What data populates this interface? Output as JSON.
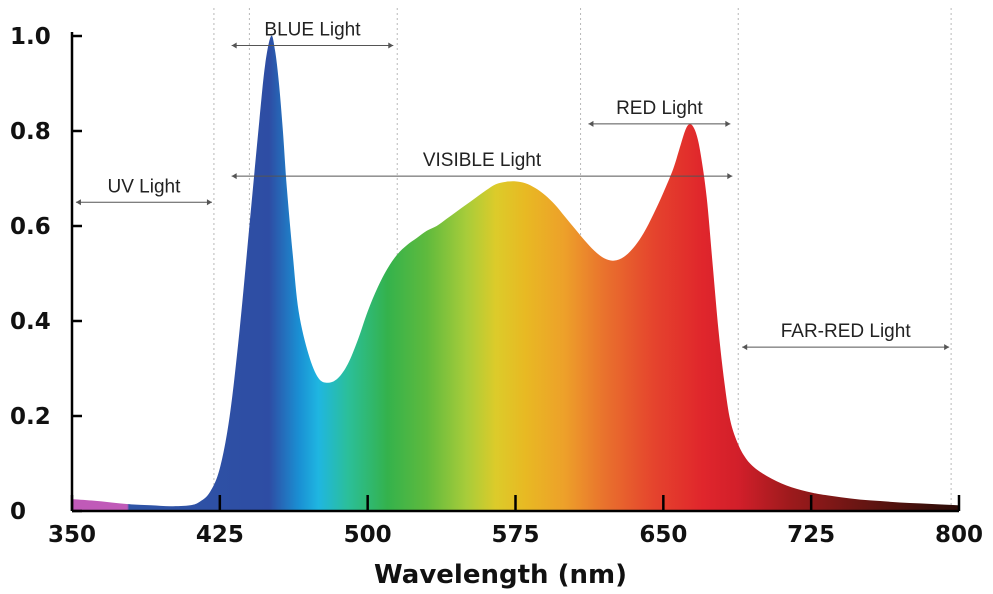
{
  "chart_data": {
    "type": "area",
    "title": "",
    "xlabel": "Wavelength (nm)",
    "ylabel": "",
    "xlim": [
      350,
      800
    ],
    "ylim": [
      0,
      1.0
    ],
    "xticks": [
      350,
      425,
      500,
      575,
      650,
      725,
      800
    ],
    "xtick_labels": [
      "350",
      "425",
      "500",
      "575",
      "650",
      "725",
      "800"
    ],
    "yticks": [
      0,
      0.2,
      0.4,
      0.6,
      0.8,
      1.0
    ],
    "ytick_labels": [
      "0",
      "0.2",
      "0.4",
      "0.6",
      "0.8",
      "1.0"
    ],
    "gridlines_x": [
      422,
      440,
      515,
      608,
      688,
      796
    ],
    "series": [
      {
        "x": [
          350,
          360,
          370,
          380,
          390,
          400,
          410,
          415,
          420,
          425,
          430,
          435,
          440,
          445,
          448,
          451,
          453,
          455,
          457,
          459,
          462,
          465,
          470,
          475,
          480,
          485,
          490,
          495,
          500,
          505,
          510,
          515,
          520,
          525,
          530,
          535,
          540,
          545,
          550,
          555,
          560,
          565,
          570,
          575,
          580,
          585,
          590,
          595,
          600,
          605,
          610,
          615,
          620,
          625,
          630,
          635,
          640,
          645,
          650,
          655,
          658,
          661,
          663,
          665,
          667,
          669,
          672,
          675,
          678,
          681,
          684,
          688,
          692,
          696,
          700,
          705,
          710,
          715,
          720,
          725,
          730,
          740,
          750,
          760,
          770,
          780,
          790,
          800
        ],
        "values": [
          0.025,
          0.022,
          0.018,
          0.014,
          0.012,
          0.01,
          0.012,
          0.02,
          0.04,
          0.09,
          0.2,
          0.38,
          0.6,
          0.82,
          0.94,
          1.0,
          0.97,
          0.9,
          0.8,
          0.68,
          0.54,
          0.42,
          0.33,
          0.28,
          0.27,
          0.28,
          0.31,
          0.36,
          0.42,
          0.47,
          0.51,
          0.54,
          0.56,
          0.575,
          0.59,
          0.6,
          0.615,
          0.63,
          0.645,
          0.66,
          0.675,
          0.688,
          0.693,
          0.694,
          0.69,
          0.68,
          0.665,
          0.645,
          0.62,
          0.595,
          0.57,
          0.548,
          0.532,
          0.527,
          0.535,
          0.555,
          0.585,
          0.625,
          0.67,
          0.72,
          0.76,
          0.8,
          0.814,
          0.81,
          0.79,
          0.75,
          0.66,
          0.52,
          0.38,
          0.27,
          0.19,
          0.14,
          0.11,
          0.092,
          0.08,
          0.068,
          0.058,
          0.05,
          0.044,
          0.039,
          0.035,
          0.029,
          0.024,
          0.021,
          0.018,
          0.016,
          0.014,
          0.012
        ]
      }
    ],
    "annotations": [
      {
        "label": "UV Light",
        "x_start": 352,
        "x_end": 421,
        "y": 0.65
      },
      {
        "label": "BLUE Light",
        "x_start": 431,
        "x_end": 513,
        "y": 0.98
      },
      {
        "label": "VISIBLE Light",
        "x_start": 431,
        "x_end": 685,
        "y": 0.705
      },
      {
        "label": "RED Light",
        "x_start": 612,
        "x_end": 684,
        "y": 0.815
      },
      {
        "label": "FAR-RED Light",
        "x_start": 690,
        "x_end": 795,
        "y": 0.345
      }
    ],
    "gradient_stops": [
      {
        "x": 350,
        "color": "#c05ab8"
      },
      {
        "x": 378,
        "color": "#c05ab8"
      },
      {
        "x": 379,
        "color": "#2f55a6"
      },
      {
        "x": 450,
        "color": "#2e4da4"
      },
      {
        "x": 465,
        "color": "#1a8fd3"
      },
      {
        "x": 475,
        "color": "#1fb6e1"
      },
      {
        "x": 490,
        "color": "#2bbf9a"
      },
      {
        "x": 510,
        "color": "#34b24c"
      },
      {
        "x": 530,
        "color": "#5fba3d"
      },
      {
        "x": 550,
        "color": "#a7cc3a"
      },
      {
        "x": 565,
        "color": "#dccb2a"
      },
      {
        "x": 580,
        "color": "#e8b923"
      },
      {
        "x": 600,
        "color": "#eda02a"
      },
      {
        "x": 620,
        "color": "#e9722d"
      },
      {
        "x": 645,
        "color": "#e5442d"
      },
      {
        "x": 670,
        "color": "#e0262c"
      },
      {
        "x": 688,
        "color": "#d21f2a"
      },
      {
        "x": 715,
        "color": "#9c1a1c"
      },
      {
        "x": 760,
        "color": "#5a1410"
      },
      {
        "x": 800,
        "color": "#2a0c08"
      }
    ]
  }
}
